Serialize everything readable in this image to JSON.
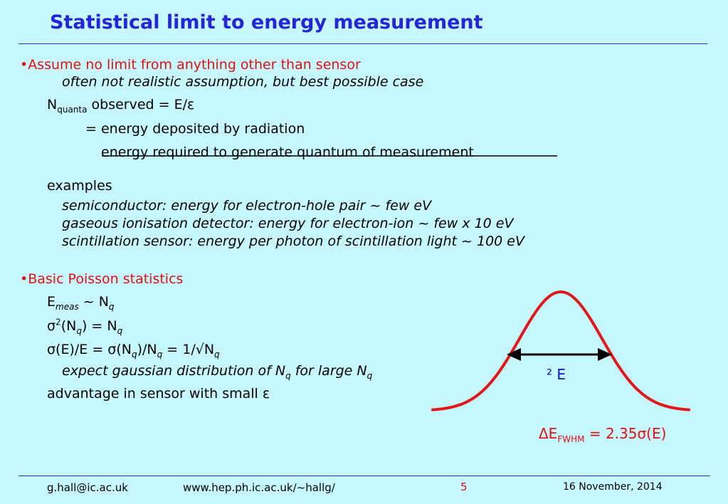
{
  "title": "Statistical limit to energy measurement",
  "section1": {
    "bullet": "•Assume no limit from anything other than sensor",
    "sub1": "often not realistic assumption, but best possible case",
    "n_base": "N",
    "n_sub": "quanta",
    "n_rest": " observed = E/ε",
    "eq_line": "= energy deposited by radiation",
    "denominator": "energy required to generate quantum of measurement",
    "examples_label": "examples",
    "ex1": "semiconductor:  energy for electron-hole pair  ~ few eV",
    "ex2": "gaseous ionisation detector:  energy for electron-ion  ~ few x 10 eV",
    "ex3": "scintillation sensor:  energy per photon of scintillation light ~ 100 eV"
  },
  "section2": {
    "bullet": "•Basic Poisson statistics",
    "l1": {
      "a": "E",
      "a_sub": "meas",
      "b": " ~ N",
      "b_sub": "q"
    },
    "l2": {
      "a": "σ",
      "a_sup": "2",
      "b": "(N",
      "b_sub": "q",
      "c": ") = N",
      "c_sub": "q"
    },
    "l3": {
      "a": "σ(E)/E = σ(N",
      "a_sub": "q",
      "b": ")/N",
      "b_sub": "q",
      "c": " = 1/√N",
      "c_sub": "q"
    },
    "l4": {
      "a": "expect gaussian distribution of N",
      "a_sub": "q",
      "b": " for large N",
      "b_sub": "q"
    },
    "l5": "advantage in sensor with small ε"
  },
  "figure": {
    "width_label": "² E",
    "fwhm_a": "ΔE",
    "fwhm_sub": "FWHM",
    "fwhm_b": " = 2.35σ(E)",
    "curve_color": "#e01818",
    "arrow_color": "#000000"
  },
  "footer": {
    "email": "g.hall@ic.ac.uk",
    "url": "www.hep.ph.ic.ac.uk/~hallg/",
    "page": "5",
    "date": "16 November, 2014"
  }
}
